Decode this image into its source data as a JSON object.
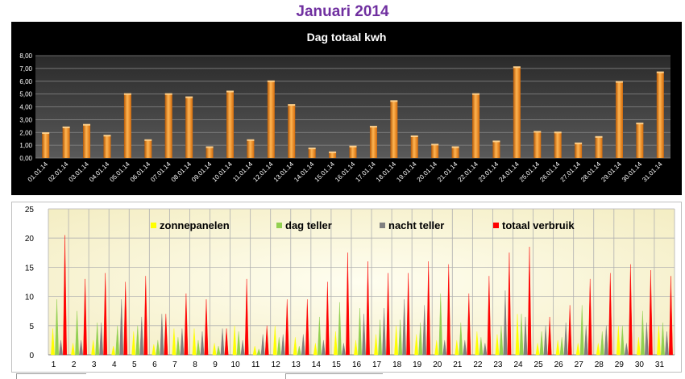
{
  "page": {
    "title": "Januari 2014"
  },
  "chart_data": [
    {
      "type": "bar",
      "title": "Dag totaal kwh",
      "categories": [
        "01.01.14",
        "02.01.14",
        "03.01.14",
        "04.01.14",
        "05.01.14",
        "06.01.14",
        "07.01.14",
        "08.01.14",
        "09.01.14",
        "10.01.14",
        "11.01.14",
        "12.01.14",
        "13.01.14",
        "14.01.14",
        "15.01.14",
        "16.01.14",
        "17.01.14",
        "18.01.14",
        "19.01.14",
        "20.01.14",
        "21.01.14",
        "22.01.14",
        "23.01.14",
        "24.01.14",
        "25.01.14",
        "26.01.14",
        "27.01.14",
        "28.01.14",
        "29.01.14",
        "30.01.14",
        "31.01.14"
      ],
      "values": [
        1.95,
        2.4,
        2.6,
        1.75,
        5.0,
        1.4,
        5.0,
        4.75,
        0.85,
        5.2,
        1.4,
        6.0,
        4.15,
        0.75,
        0.45,
        0.9,
        2.45,
        4.45,
        1.7,
        1.05,
        0.85,
        5.0,
        1.3,
        7.1,
        2.05,
        2.0,
        1.15,
        1.65,
        5.95,
        2.7,
        6.7
      ],
      "ylim": [
        0,
        8
      ],
      "yticks": [
        "0,00",
        "1,00",
        "2,00",
        "3,00",
        "4,00",
        "5,00",
        "6,00",
        "7,00",
        "8,00"
      ],
      "grid": true,
      "bar_color": "#f08a1e",
      "background": "#000000"
    },
    {
      "type": "bar",
      "title": "",
      "categories": [
        "1",
        "2",
        "3",
        "4",
        "5",
        "6",
        "7",
        "8",
        "9",
        "10",
        "11",
        "12",
        "13",
        "14",
        "15",
        "16",
        "17",
        "18",
        "19",
        "20",
        "21",
        "22",
        "23",
        "24",
        "25",
        "26",
        "27",
        "28",
        "29",
        "30",
        "31"
      ],
      "ylim": [
        0,
        25
      ],
      "yticks": [
        "0",
        "5",
        "10",
        "15",
        "20",
        "25"
      ],
      "grid": true,
      "legend_position": "top",
      "series": [
        {
          "name": "zonnepanelen",
          "color": "#ffff00",
          "values": [
            4.5,
            2.0,
            2.5,
            1.5,
            4.0,
            1.8,
            4.5,
            4.5,
            2.0,
            5.0,
            1.5,
            5.0,
            3.0,
            2.0,
            4.0,
            2.5,
            3.5,
            5.0,
            3.5,
            2.5,
            2.5,
            4.0,
            3.5,
            7.0,
            2.0,
            2.5,
            2.0,
            2.0,
            5.0,
            3.0,
            5.0
          ]
        },
        {
          "name": "dag teller",
          "color": "#92d050",
          "values": [
            9.5,
            7.5,
            5.5,
            5.0,
            5.0,
            2.5,
            3.0,
            2.5,
            1.5,
            4.0,
            1.0,
            3.0,
            1.5,
            6.5,
            9.0,
            8.0,
            6.0,
            6.0,
            5.5,
            10.5,
            5.5,
            3.0,
            5.0,
            7.0,
            4.0,
            3.0,
            8.5,
            4.0,
            5.0,
            7.5,
            5.5
          ]
        },
        {
          "name": "nacht teller",
          "color": "#808080",
          "values": [
            2.5,
            2.5,
            5.5,
            9.5,
            6.5,
            7.0,
            4.5,
            4.0,
            4.5,
            2.5,
            3.5,
            3.5,
            3.5,
            2.5,
            2.0,
            7.0,
            8.0,
            9.5,
            8.5,
            2.5,
            2.5,
            2.0,
            11.0,
            6.5,
            5.0,
            5.5,
            5.0,
            5.0,
            2.0,
            5.5,
            4.0
          ]
        },
        {
          "name": "totaal verbruik",
          "color": "#ff0000",
          "values": [
            20.5,
            13.0,
            14.0,
            12.5,
            13.5,
            7.0,
            10.5,
            9.5,
            4.5,
            13.0,
            5.0,
            9.5,
            9.5,
            12.5,
            17.5,
            16.0,
            14.0,
            14.0,
            16.0,
            15.5,
            10.5,
            13.5,
            17.5,
            18.5,
            6.5,
            8.5,
            13.0,
            14.0,
            15.5,
            14.5,
            13.5
          ]
        }
      ]
    }
  ]
}
